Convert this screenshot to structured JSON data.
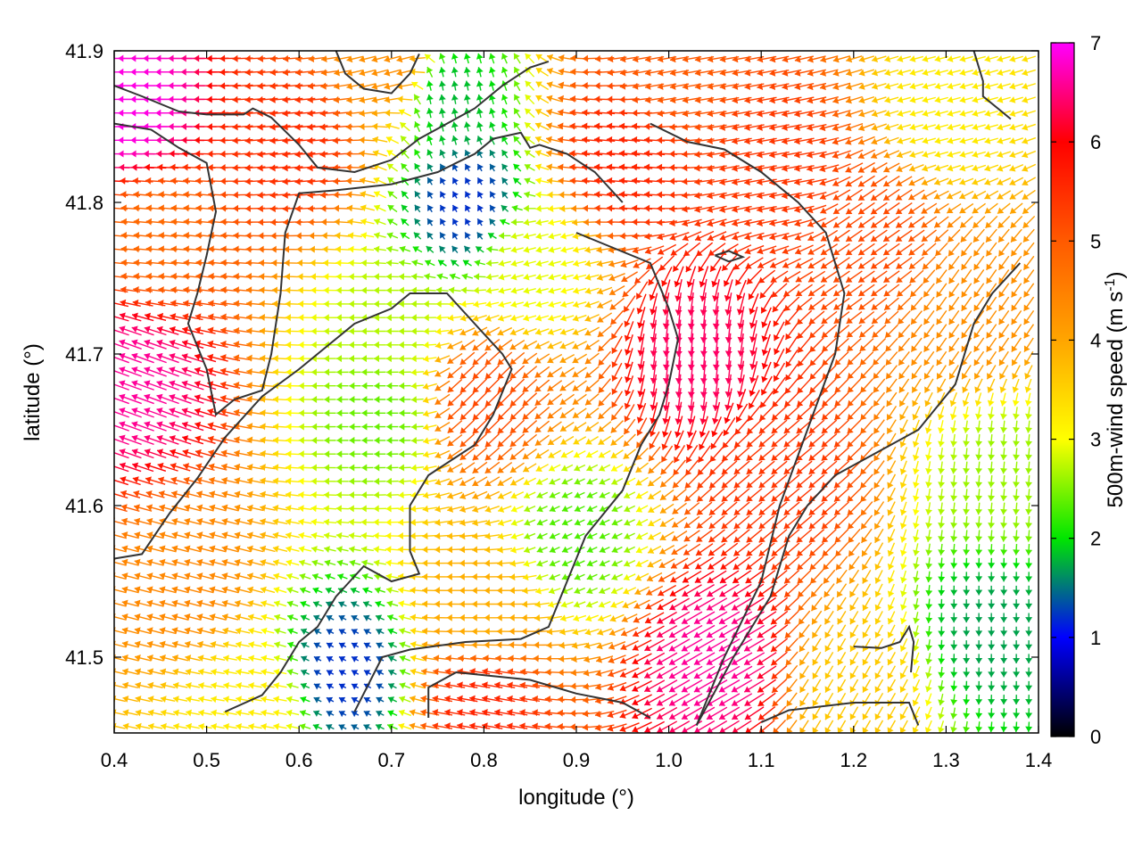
{
  "chart_data": {
    "type": "vector-field",
    "title": "",
    "xlabel": "longitude (°)",
    "ylabel": "latitude (°)",
    "xlim": [
      0.4,
      1.4
    ],
    "ylim": [
      41.45,
      41.9
    ],
    "xticks": [
      "0.4",
      "0.5",
      "0.6",
      "0.7",
      "0.8",
      "0.9",
      "1.0",
      "1.1",
      "1.2",
      "1.3",
      "1.4"
    ],
    "yticks": [
      "41.5",
      "41.6",
      "41.7",
      "41.8",
      "41.9"
    ],
    "grid": false,
    "colorbar": {
      "label_main": "500m-wind speed (m s",
      "label_sup": "-1",
      "label_end": ")",
      "min": 0,
      "max": 7,
      "ticks": [
        "0",
        "1",
        "2",
        "3",
        "4",
        "5",
        "6",
        "7"
      ],
      "colors": [
        "#000000",
        "#0000ff",
        "#00e600",
        "#ffff00",
        "#ffa500",
        "#ff5a00",
        "#ff0000",
        "#ff00ff"
      ]
    },
    "wind_regions": [
      {
        "lon": 0.42,
        "lat": 41.86,
        "speed": 6.9,
        "dir": 180
      },
      {
        "lon": 0.42,
        "lat": 41.68,
        "speed": 6.6,
        "dir": 160
      },
      {
        "lon": 0.45,
        "lat": 41.78,
        "speed": 4.8,
        "dir": 175
      },
      {
        "lon": 0.48,
        "lat": 41.55,
        "speed": 4.4,
        "dir": 165
      },
      {
        "lon": 0.55,
        "lat": 41.47,
        "speed": 3.2,
        "dir": 170
      },
      {
        "lon": 0.6,
        "lat": 41.84,
        "speed": 5.5,
        "dir": 185
      },
      {
        "lon": 0.7,
        "lat": 41.89,
        "speed": 4.3,
        "dir": 195
      },
      {
        "lon": 0.76,
        "lat": 41.87,
        "speed": 1.8,
        "dir": 100
      },
      {
        "lon": 0.78,
        "lat": 41.8,
        "speed": 1.2,
        "dir": 120
      },
      {
        "lon": 0.7,
        "lat": 41.72,
        "speed": 2.7,
        "dir": 180
      },
      {
        "lon": 0.69,
        "lat": 41.66,
        "speed": 2.4,
        "dir": 180
      },
      {
        "lon": 0.8,
        "lat": 41.67,
        "speed": 5.2,
        "dir": 225
      },
      {
        "lon": 0.85,
        "lat": 41.76,
        "speed": 2.9,
        "dir": 195
      },
      {
        "lon": 0.9,
        "lat": 41.58,
        "speed": 2.3,
        "dir": 205
      },
      {
        "lon": 0.65,
        "lat": 41.49,
        "speed": 1.2,
        "dir": 150
      },
      {
        "lon": 0.8,
        "lat": 41.53,
        "speed": 3.9,
        "dir": 180
      },
      {
        "lon": 0.8,
        "lat": 41.47,
        "speed": 5.6,
        "dir": 170
      },
      {
        "lon": 0.95,
        "lat": 41.83,
        "speed": 5.6,
        "dir": 175
      },
      {
        "lon": 1.0,
        "lat": 41.89,
        "speed": 5.0,
        "dir": 190
      },
      {
        "lon": 1.03,
        "lat": 41.7,
        "speed": 6.4,
        "dir": 265
      },
      {
        "lon": 1.05,
        "lat": 41.5,
        "speed": 6.6,
        "dir": 210
      },
      {
        "lon": 1.12,
        "lat": 41.62,
        "speed": 5.4,
        "dir": 220
      },
      {
        "lon": 1.12,
        "lat": 41.82,
        "speed": 5.4,
        "dir": 190
      },
      {
        "lon": 1.22,
        "lat": 41.78,
        "speed": 5.2,
        "dir": 215
      },
      {
        "lon": 1.3,
        "lat": 41.86,
        "speed": 3.2,
        "dir": 195
      },
      {
        "lon": 1.33,
        "lat": 41.73,
        "speed": 4.3,
        "dir": 235
      },
      {
        "lon": 1.36,
        "lat": 41.62,
        "speed": 2.6,
        "dir": 265
      },
      {
        "lon": 1.35,
        "lat": 41.52,
        "speed": 1.7,
        "dir": 270
      },
      {
        "lon": 1.2,
        "lat": 41.48,
        "speed": 3.6,
        "dir": 240
      }
    ],
    "contour_lines": [
      [
        [
          0.4,
          41.877
        ],
        [
          0.43,
          41.87
        ],
        [
          0.47,
          41.86
        ],
        [
          0.5,
          41.858
        ],
        [
          0.54,
          41.858
        ],
        [
          0.55,
          41.862
        ],
        [
          0.57,
          41.856
        ],
        [
          0.6,
          41.838
        ],
        [
          0.62,
          41.823
        ],
        [
          0.66,
          41.82
        ],
        [
          0.7,
          41.828
        ],
        [
          0.73,
          41.842
        ],
        [
          0.76,
          41.852
        ],
        [
          0.79,
          41.862
        ],
        [
          0.82,
          41.877
        ],
        [
          0.85,
          41.889
        ],
        [
          0.87,
          41.893
        ]
      ],
      [
        [
          0.4,
          41.852
        ],
        [
          0.44,
          41.848
        ],
        [
          0.47,
          41.836
        ],
        [
          0.5,
          41.826
        ],
        [
          0.51,
          41.794
        ],
        [
          0.5,
          41.765
        ],
        [
          0.49,
          41.74
        ],
        [
          0.48,
          41.72
        ],
        [
          0.5,
          41.69
        ],
        [
          0.51,
          41.66
        ],
        [
          0.53,
          41.67
        ],
        [
          0.56,
          41.676
        ],
        [
          0.57,
          41.7
        ],
        [
          0.58,
          41.74
        ],
        [
          0.585,
          41.78
        ],
        [
          0.6,
          41.806
        ],
        [
          0.64,
          41.808
        ],
        [
          0.7,
          41.812
        ],
        [
          0.75,
          41.82
        ],
        [
          0.79,
          41.832
        ],
        [
          0.81,
          41.842
        ],
        [
          0.84,
          41.846
        ],
        [
          0.85,
          41.836
        ],
        [
          0.86,
          41.838
        ],
        [
          0.89,
          41.832
        ],
        [
          0.92,
          41.82
        ],
        [
          0.95,
          41.8
        ]
      ],
      [
        [
          0.4,
          41.565
        ],
        [
          0.43,
          41.568
        ],
        [
          0.46,
          41.595
        ],
        [
          0.49,
          41.618
        ],
        [
          0.52,
          41.645
        ],
        [
          0.56,
          41.672
        ],
        [
          0.6,
          41.69
        ],
        [
          0.62,
          41.7
        ],
        [
          0.66,
          41.72
        ],
        [
          0.7,
          41.73
        ],
        [
          0.72,
          41.74
        ],
        [
          0.76,
          41.74
        ],
        [
          0.79,
          41.72
        ],
        [
          0.82,
          41.7
        ],
        [
          0.83,
          41.69
        ],
        [
          0.81,
          41.66
        ],
        [
          0.79,
          41.64
        ],
        [
          0.74,
          41.62
        ],
        [
          0.72,
          41.6
        ],
        [
          0.72,
          41.57
        ],
        [
          0.73,
          41.555
        ],
        [
          0.7,
          41.55
        ],
        [
          0.67,
          41.56
        ],
        [
          0.64,
          41.54
        ],
        [
          0.62,
          41.52
        ],
        [
          0.6,
          41.51
        ],
        [
          0.58,
          41.49
        ],
        [
          0.56,
          41.475
        ],
        [
          0.52,
          41.464
        ]
      ],
      [
        [
          0.66,
          41.464
        ],
        [
          0.69,
          41.5
        ],
        [
          0.72,
          41.505
        ],
        [
          0.78,
          41.51
        ],
        [
          0.84,
          41.512
        ],
        [
          0.87,
          41.52
        ],
        [
          0.89,
          41.55
        ],
        [
          0.91,
          41.58
        ],
        [
          0.95,
          41.61
        ],
        [
          0.97,
          41.64
        ],
        [
          0.99,
          41.66
        ],
        [
          1.0,
          41.68
        ],
        [
          1.01,
          41.71
        ],
        [
          1.0,
          41.73
        ],
        [
          0.98,
          41.76
        ],
        [
          0.94,
          41.77
        ],
        [
          0.9,
          41.78
        ]
      ],
      [
        [
          0.74,
          41.46
        ],
        [
          0.74,
          41.48
        ],
        [
          0.77,
          41.49
        ],
        [
          0.85,
          41.485
        ],
        [
          0.9,
          41.476
        ],
        [
          0.95,
          41.47
        ],
        [
          0.98,
          41.46
        ]
      ],
      [
        [
          1.03,
          41.455
        ],
        [
          1.07,
          41.5
        ],
        [
          1.11,
          41.54
        ],
        [
          1.13,
          41.58
        ],
        [
          1.15,
          41.6
        ],
        [
          1.18,
          41.62
        ],
        [
          1.21,
          41.63
        ],
        [
          1.27,
          41.65
        ],
        [
          1.31,
          41.68
        ],
        [
          1.33,
          41.72
        ],
        [
          1.35,
          41.74
        ],
        [
          1.38,
          41.76
        ]
      ],
      [
        [
          1.03,
          41.455
        ],
        [
          1.06,
          41.5
        ],
        [
          1.1,
          41.55
        ],
        [
          1.12,
          41.6
        ],
        [
          1.15,
          41.65
        ],
        [
          1.18,
          41.7
        ],
        [
          1.19,
          41.74
        ],
        [
          1.17,
          41.78
        ],
        [
          1.14,
          41.8
        ],
        [
          1.1,
          41.82
        ],
        [
          1.06,
          41.835
        ],
        [
          1.02,
          41.84
        ],
        [
          0.98,
          41.852
        ]
      ],
      [
        [
          1.2,
          41.507
        ],
        [
          1.23,
          41.506
        ],
        [
          1.25,
          41.51
        ],
        [
          1.26,
          41.52
        ],
        [
          1.265,
          41.51
        ],
        [
          1.262,
          41.49
        ]
      ],
      [
        [
          1.33,
          41.9
        ],
        [
          1.34,
          41.88
        ],
        [
          1.34,
          41.87
        ],
        [
          1.36,
          41.86
        ],
        [
          1.37,
          41.855
        ]
      ],
      [
        [
          1.05,
          41.765
        ],
        [
          1.065,
          41.768
        ],
        [
          1.08,
          41.764
        ],
        [
          1.065,
          41.761
        ],
        [
          1.05,
          41.765
        ]
      ],
      [
        [
          0.64,
          41.9
        ],
        [
          0.65,
          41.885
        ],
        [
          0.67,
          41.875
        ],
        [
          0.7,
          41.872
        ],
        [
          0.72,
          41.885
        ],
        [
          0.73,
          41.898
        ]
      ],
      [
        [
          1.1,
          41.457
        ],
        [
          1.13,
          41.465
        ],
        [
          1.2,
          41.47
        ],
        [
          1.26,
          41.47
        ],
        [
          1.27,
          41.455
        ]
      ]
    ]
  }
}
